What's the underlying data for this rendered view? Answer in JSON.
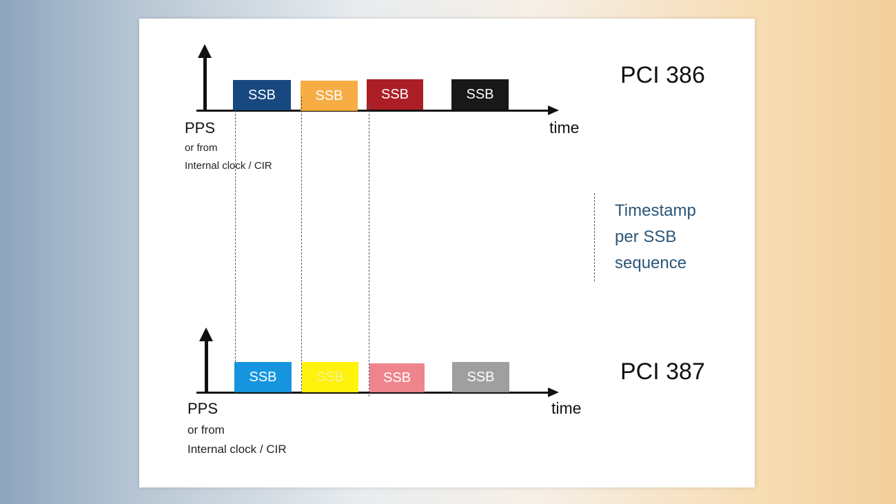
{
  "top": {
    "title": "PCI 386",
    "axis_label": "time",
    "source": "PPS",
    "source_line2": "or from",
    "source_line3": "Internal clock / CIR",
    "blocks": [
      {
        "label": "SSB",
        "color": "#0b3f7a"
      },
      {
        "label": "SSB",
        "color": "#f5a93a"
      },
      {
        "label": "SSB",
        "color": "#a8121b"
      },
      {
        "label": "SSB",
        "color": "#0c0c0c"
      }
    ]
  },
  "bottom": {
    "title": "PCI 387",
    "axis_label": "time",
    "source": "PPS",
    "source_line2": "or from",
    "source_line3": "Internal clock / CIR",
    "blocks": [
      {
        "label": "SSB",
        "color": "#0a90de"
      },
      {
        "label": "SSB",
        "color": "#fff200"
      },
      {
        "label": "SSB",
        "color": "#ef7f86"
      },
      {
        "label": "SSB",
        "color": "#9a9a9a"
      }
    ]
  },
  "annotation": {
    "line1": "Timestamp",
    "line2": "per SSB",
    "line3": "sequence",
    "color": "#2c5577"
  }
}
